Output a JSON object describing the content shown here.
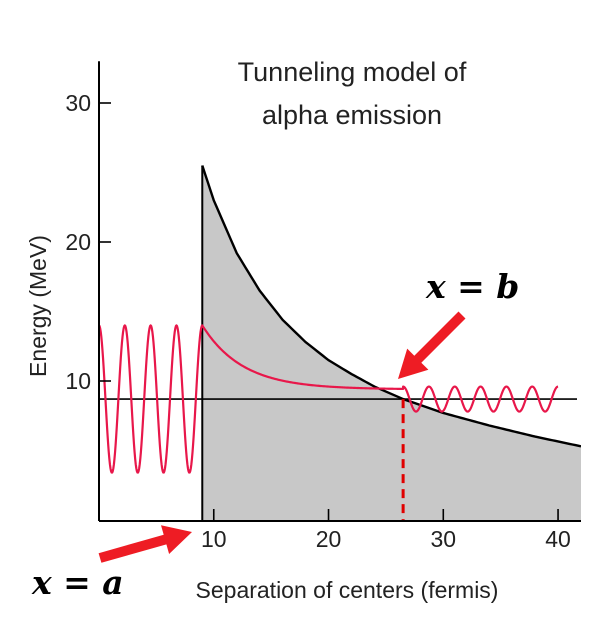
{
  "chart_data": {
    "type": "line",
    "title_lines": [
      "Tunneling model of",
      "alpha emission"
    ],
    "xlabel": "Separation of centers (fermis)",
    "ylabel": "Energy (MeV)",
    "xlim": [
      0,
      42
    ],
    "ylim": [
      0,
      33
    ],
    "x_ticks": [
      10,
      20,
      30,
      40
    ],
    "y_ticks": [
      10,
      20,
      30
    ],
    "grid": false,
    "alpha_energy": 8.7,
    "nuclear_radius": 9,
    "coulomb_barrier": {
      "name": "barrier",
      "x": [
        9,
        10,
        12,
        14,
        16,
        18,
        20,
        22,
        24,
        26.5,
        30,
        34,
        38,
        42
      ],
      "y": [
        25.5,
        23.0,
        19.2,
        16.5,
        14.4,
        12.8,
        11.5,
        10.5,
        9.6,
        8.7,
        7.7,
        6.8,
        6.0,
        5.3
      ]
    },
    "wavefunction": {
      "inside": {
        "x_range": [
          0,
          9
        ],
        "center": 8.7,
        "amplitude": 5.3,
        "cycles": 4
      },
      "barrier_decay": {
        "x_range": [
          9,
          26.5
        ],
        "start": 14.0,
        "end": 9.4
      },
      "outside": {
        "x_range": [
          26.5,
          40
        ],
        "center": 8.7,
        "amplitude": 0.9,
        "cycles": 6
      }
    },
    "annotations": [
      {
        "label": "x = a",
        "points_to_x": 9
      },
      {
        "label": "x = b",
        "points_to_x": 26.5
      }
    ],
    "colors": {
      "barrier_fill": "#c8c8c8",
      "barrier_line": "#000000",
      "wave": "#e8174a",
      "arrow": "#ee1c24",
      "turning_point_line": "#e00000"
    }
  }
}
